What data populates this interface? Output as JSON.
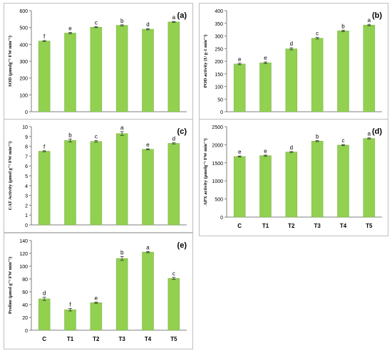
{
  "colors": {
    "bar": "#92d050",
    "bar_edge": "#76b040",
    "axis": "#7f7f7f",
    "text": "#000000"
  },
  "chart_data": [
    {
      "type": "bar",
      "panel_label": "(a)",
      "ylabel": "SOD (μmolg⁻¹ FW min⁻¹)",
      "categories": [
        "C",
        "T1",
        "T2",
        "T3",
        "T4",
        "T5"
      ],
      "values": [
        420,
        467,
        502,
        513,
        490,
        533
      ],
      "errors": [
        3,
        4,
        3,
        3,
        4,
        3
      ],
      "letters": [
        "f",
        "e",
        "c",
        "b",
        "d",
        "a"
      ],
      "ylim": [
        0,
        600
      ],
      "yticks": [
        "0",
        "100",
        "200",
        "300",
        "400",
        "500",
        "600"
      ],
      "show_xticks": false,
      "grid": false
    },
    {
      "type": "bar",
      "panel_label": "(b)",
      "ylabel": "POD activity (U g-1 min⁻¹)",
      "categories": [
        "C",
        "T1",
        "T2",
        "T3",
        "T4",
        "T5"
      ],
      "values": [
        189,
        194,
        249,
        291,
        320,
        343
      ],
      "errors": [
        3,
        3,
        4,
        3,
        3,
        3
      ],
      "letters": [
        "e",
        "e",
        "d",
        "c",
        "b",
        "a"
      ],
      "ylim": [
        0,
        400
      ],
      "yticks": [
        "0",
        "50",
        "100",
        "150",
        "200",
        "250",
        "300",
        "350",
        "400"
      ],
      "show_xticks": false,
      "grid": false
    },
    {
      "type": "bar",
      "panel_label": "(c)",
      "ylabel": "CAT Activity (μmol g⁻¹ FW min⁻¹)",
      "categories": [
        "C",
        "T1",
        "T2",
        "T3",
        "T4",
        "T5"
      ],
      "values": [
        7.5,
        8.6,
        8.5,
        9.3,
        7.7,
        8.3
      ],
      "errors": [
        0.05,
        0.15,
        0.08,
        0.2,
        0.05,
        0.06
      ],
      "letters": [
        "f",
        "b",
        "c",
        "a",
        "e",
        "d"
      ],
      "ylim": [
        0,
        10
      ],
      "yticks": [
        "0",
        "1",
        "2",
        "3",
        "4",
        "5",
        "6",
        "7",
        "8",
        "9",
        "10"
      ],
      "show_xticks": false,
      "grid": false
    },
    {
      "type": "bar",
      "panel_label": "(d)",
      "ylabel": "APX activity (μmolg⁻¹ FW min⁻¹)",
      "categories": [
        "C",
        "T1",
        "T2",
        "T3",
        "T4",
        "T5"
      ],
      "values": [
        1675,
        1700,
        1800,
        2100,
        1990,
        2175
      ],
      "errors": [
        15,
        15,
        15,
        15,
        15,
        15
      ],
      "letters": [
        "e",
        "e",
        "d",
        "b",
        "c",
        "a"
      ],
      "ylim": [
        0,
        2500
      ],
      "yticks": [
        "0",
        "500",
        "1000",
        "1500",
        "2000",
        "2500"
      ],
      "show_xticks": true,
      "grid": false
    },
    {
      "type": "bar",
      "panel_label": "(e)",
      "ylabel": "Proline (μmol g⁻¹ FW min⁻¹)",
      "categories": [
        "C",
        "T1",
        "T2",
        "T3",
        "T4",
        "T5"
      ],
      "values": [
        49,
        32,
        43,
        112,
        122,
        81
      ],
      "errors": [
        2.5,
        2,
        1,
        3,
        1,
        1.5
      ],
      "letters": [
        "d",
        "f",
        "e",
        "b",
        "a",
        "c"
      ],
      "ylim": [
        0,
        140
      ],
      "yticks": [
        "0",
        "20",
        "40",
        "60",
        "80",
        "100",
        "120",
        "140"
      ],
      "show_xticks": true,
      "grid": false
    }
  ]
}
